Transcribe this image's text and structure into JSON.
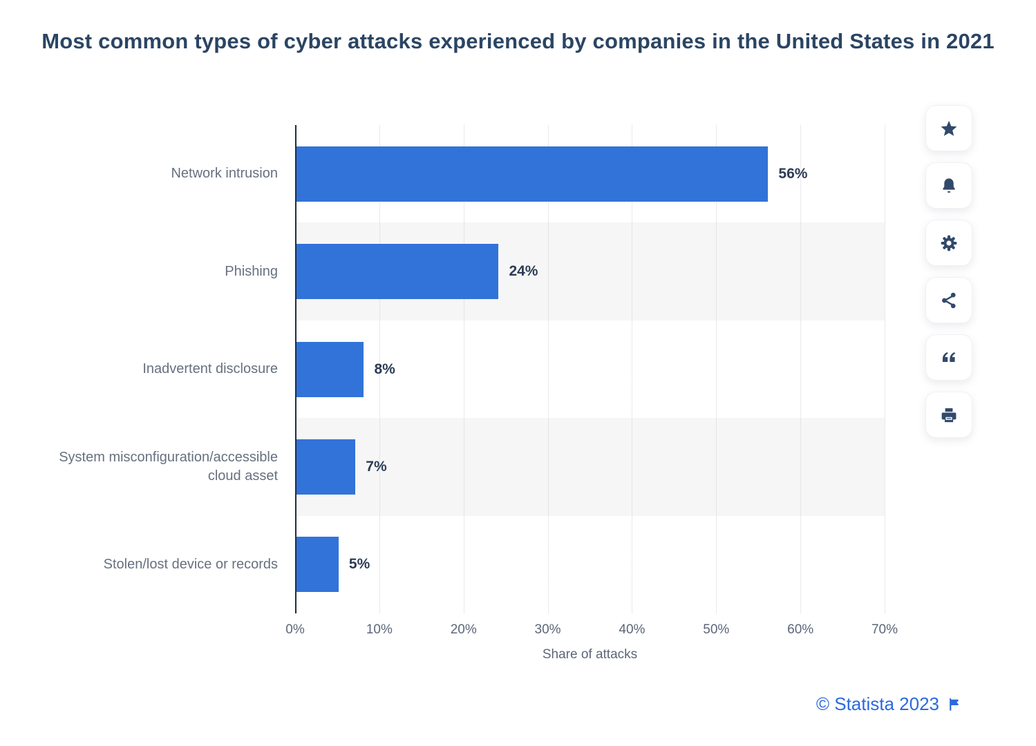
{
  "title": "Most common types of cyber attacks experienced by companies in the United States in 2021",
  "chart_data": {
    "type": "bar",
    "orientation": "horizontal",
    "categories": [
      "Network intrusion",
      "Phishing",
      "Inadvertent disclosure",
      "System misconfiguration/accessible cloud asset",
      "Stolen/lost device or records"
    ],
    "values": [
      56,
      24,
      8,
      7,
      5
    ],
    "value_labels": [
      "56%",
      "24%",
      "8%",
      "7%",
      "5%"
    ],
    "xlabel": "Share of attacks",
    "x_ticks": [
      "0%",
      "10%",
      "20%",
      "30%",
      "40%",
      "50%",
      "60%",
      "70%"
    ],
    "xlim": [
      0,
      70
    ],
    "grid": "dotted-vertical",
    "legend": "none",
    "row_bands": [
      1,
      3
    ]
  },
  "toolbar": {
    "buttons": [
      {
        "icon": "star",
        "name": "favorite-button"
      },
      {
        "icon": "bell",
        "name": "alert-button"
      },
      {
        "icon": "gear",
        "name": "settings-button"
      },
      {
        "icon": "share",
        "name": "share-button"
      },
      {
        "icon": "quote",
        "name": "citation-button"
      },
      {
        "icon": "printer",
        "name": "print-button"
      }
    ]
  },
  "footer": {
    "credit": "© Statista 2023",
    "flag_icon": "flag"
  },
  "theme": {
    "bar_color": "#3173d8",
    "band_color": "#f6f6f7",
    "grid_color": "#d2d4d8",
    "axis_color": "#1f2b40",
    "title_color": "#2b4563",
    "label_color": "#677080",
    "tick_color": "#5c6678",
    "value_color": "#2c3c55",
    "credit_color": "#2a6ade",
    "icon_color": "#32496b"
  }
}
